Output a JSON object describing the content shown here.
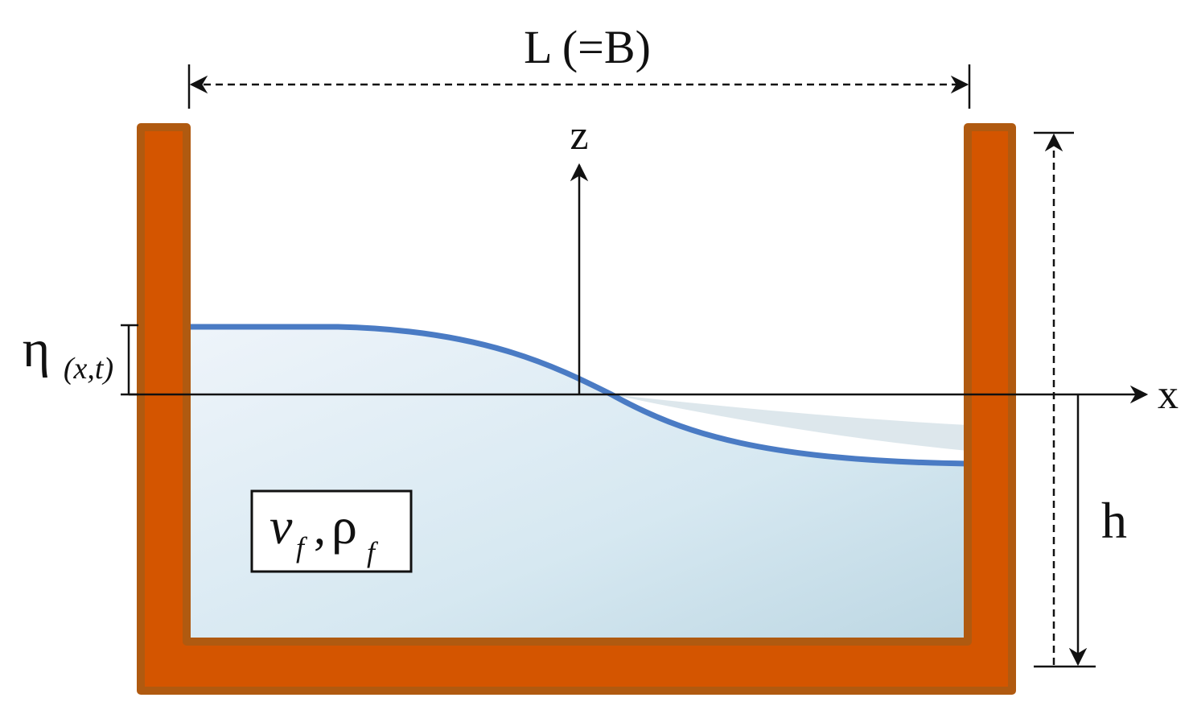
{
  "labels": {
    "width": "L (=B)",
    "z_axis": "z",
    "x_axis": "x",
    "height": "h",
    "eta": "η",
    "eta_args": "(x,t)",
    "viscosity": "ν",
    "viscosity_sub": "f",
    "separator": ",",
    "density": "ρ",
    "density_sub": "f"
  }
}
